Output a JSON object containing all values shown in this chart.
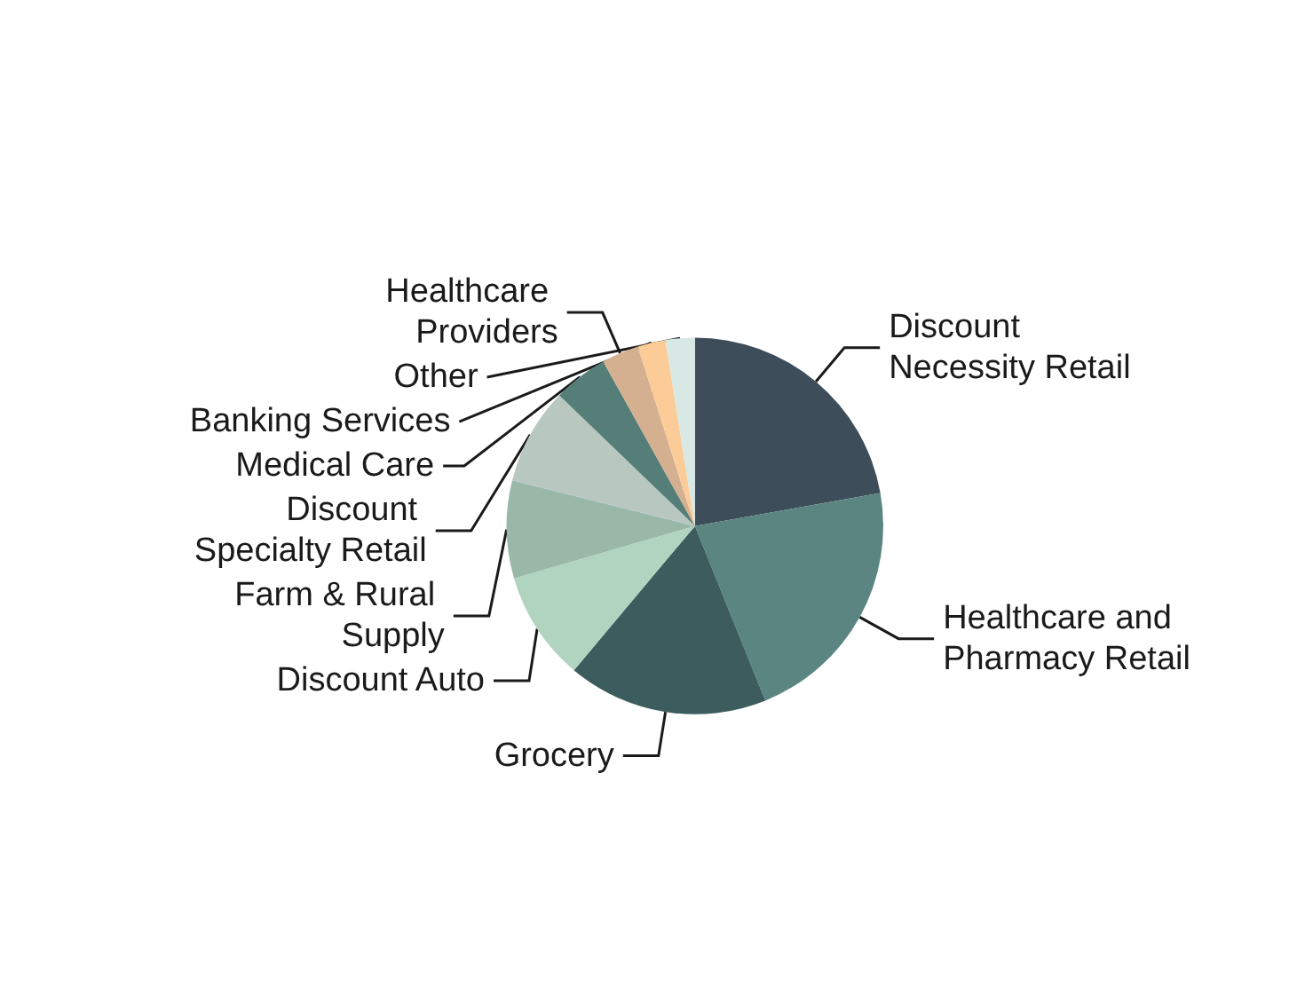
{
  "chart_data": {
    "type": "pie",
    "categories": [
      "Discount Necessity Retail",
      "Healthcare and Pharmacy Retail",
      "Grocery",
      "Discount Auto",
      "Farm & Rural Supply",
      "Discount Specialty Retail",
      "Medical Care",
      "Healthcare Providers",
      "Banking Services",
      "Other"
    ],
    "values": [
      22.2,
      21.7,
      17.2,
      9.4,
      8.4,
      8.3,
      4.7,
      3.2,
      2.4,
      2.5
    ],
    "colors": [
      "#3d4d5a",
      "#5a8580",
      "#3d5c5e",
      "#b0d4c0",
      "#9ab8a8",
      "#b8c8c0",
      "#567e78",
      "#d4b090",
      "#fccc98",
      "#d8e8e4"
    ],
    "legend": false
  }
}
